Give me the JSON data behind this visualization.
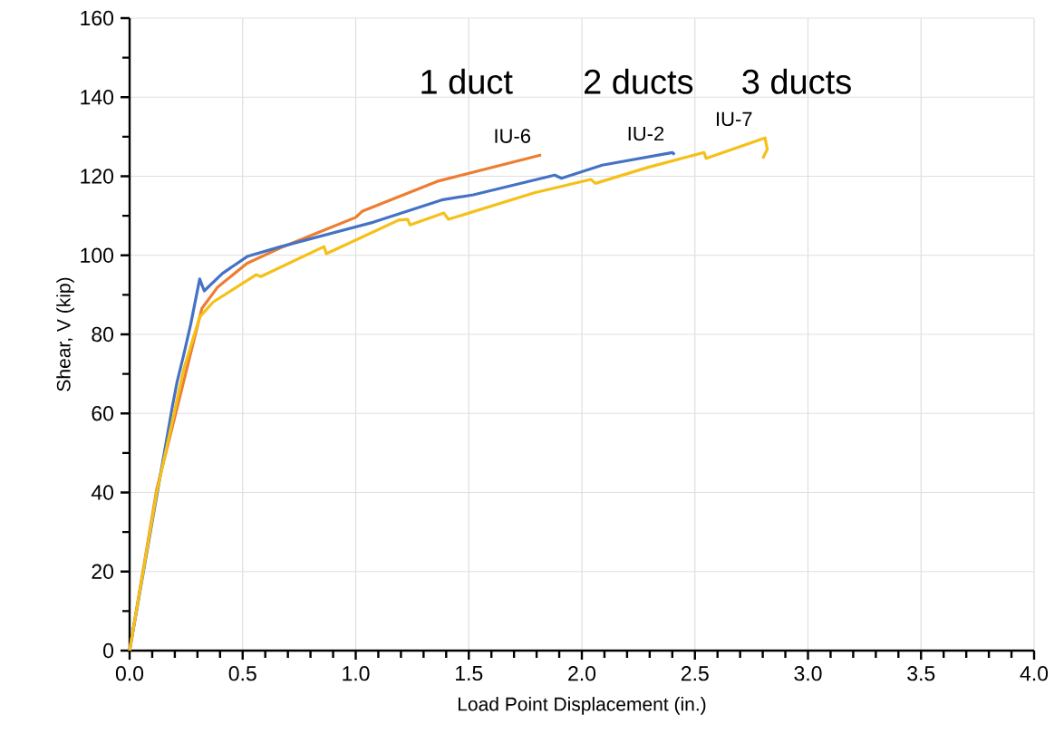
{
  "chart_data": {
    "type": "line",
    "xlabel": "Load Point Displacement (in.)",
    "ylabel": "Shear, V (kip)",
    "xlim": [
      0,
      4
    ],
    "ylim": [
      0,
      160
    ],
    "xticks": [
      {
        "value": 0,
        "label": "0.0"
      },
      {
        "value": 0.5,
        "label": "0.5"
      },
      {
        "value": 1,
        "label": "1.0"
      },
      {
        "value": 1.5,
        "label": "1.5"
      },
      {
        "value": 2,
        "label": "2.0"
      },
      {
        "value": 2.5,
        "label": "2.5"
      },
      {
        "value": 3,
        "label": "3.0"
      },
      {
        "value": 3.5,
        "label": "3.5"
      },
      {
        "value": 4,
        "label": "4.0"
      }
    ],
    "yticks": [
      0,
      20,
      40,
      60,
      80,
      100,
      120,
      140,
      160
    ],
    "grid": true,
    "marker": "none",
    "line_style": "solid",
    "series": [
      {
        "name": "IU-6",
        "color": "#ed7d31",
        "x": [
          0,
          0.12,
          0.22,
          0.28,
          0.32,
          0.39,
          0.52,
          0.68,
          1.0,
          1.03,
          1.36,
          1.82
        ],
        "values": [
          0,
          40.8,
          63.7,
          77.5,
          86.6,
          92,
          98,
          102.2,
          109.6,
          111.2,
          118.7,
          125.4
        ]
      },
      {
        "name": "IU-2",
        "color": "#4472c4",
        "x": [
          0,
          0.19,
          0.21,
          0.24,
          0.27,
          0.31,
          0.33,
          0.41,
          0.52,
          0.67,
          1.08,
          1.38,
          1.52,
          1.88,
          1.91,
          2.09,
          2.4,
          2.41
        ],
        "values": [
          0,
          62,
          68,
          75,
          82.5,
          94,
          91,
          95.4,
          99.7,
          102.2,
          108.4,
          114,
          115.3,
          120.3,
          119.5,
          122.8,
          126,
          125.5
        ]
      },
      {
        "name": "IU-7",
        "color": "#f5c018",
        "x": [
          0,
          0.12,
          0.24,
          0.31,
          0.37,
          0.56,
          0.58,
          0.86,
          0.87,
          1.19,
          1.23,
          1.24,
          1.39,
          1.41,
          1.79,
          2.04,
          2.06,
          2.29,
          2.54,
          2.55,
          2.81,
          2.82,
          2.8
        ],
        "values": [
          0,
          40,
          71.3,
          84.4,
          88.2,
          95.1,
          94.6,
          102.2,
          100.4,
          108.9,
          109.1,
          107.7,
          110.7,
          109.1,
          115.8,
          119.2,
          118.2,
          122.2,
          126,
          124.5,
          129.7,
          126.8,
          124.5
        ]
      }
    ],
    "annotations": [
      "1 duct",
      "2 ducts",
      "3 ducts"
    ]
  }
}
